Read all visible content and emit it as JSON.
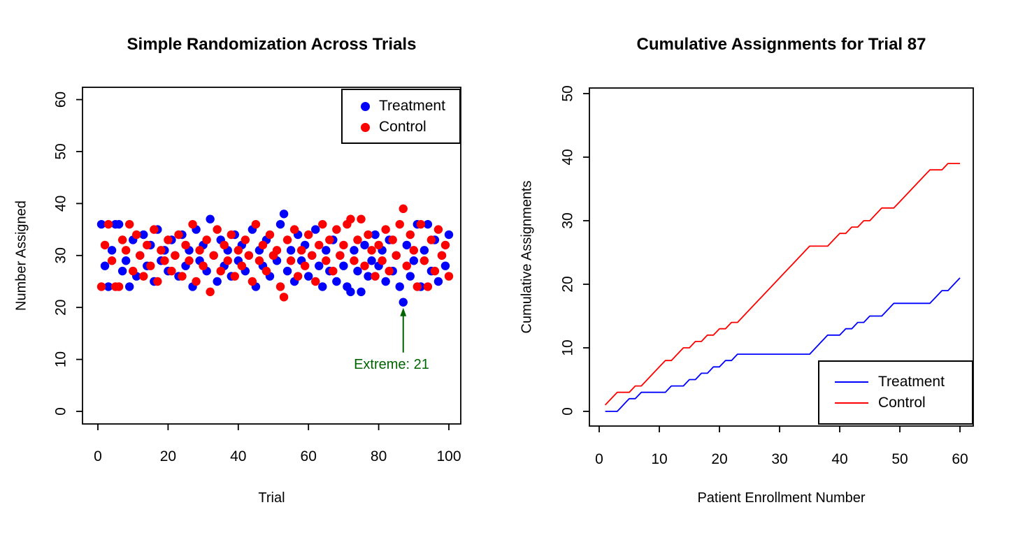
{
  "page": {
    "background": "#ffffff"
  },
  "colors": {
    "treatment": "#0000ff",
    "control": "#ff0000",
    "annotation_green": "#006400",
    "axis": "#000000"
  },
  "chart_data": [
    {
      "type": "scatter",
      "title": "Simple Randomization Across Trials",
      "xlabel": "Trial",
      "ylabel": "Number Assigned",
      "xlim": [
        0,
        100
      ],
      "ylim": [
        0,
        60
      ],
      "xticks": [
        0,
        20,
        40,
        60,
        80,
        100
      ],
      "yticks": [
        0,
        10,
        20,
        30,
        40,
        50,
        60
      ],
      "grid": false,
      "x_start": 1,
      "legend": {
        "position": "topright",
        "marker": "dot",
        "entries": [
          {
            "label": "Treatment",
            "color": "#0000ff"
          },
          {
            "label": "Control",
            "color": "#ff0000"
          }
        ]
      },
      "series": [
        {
          "name": "Treatment",
          "color": "#0000ff",
          "values": [
            36,
            28,
            24,
            31,
            36,
            36,
            27,
            29,
            24,
            33,
            26,
            30,
            34,
            28,
            32,
            25,
            35,
            29,
            31,
            27,
            33,
            30,
            26,
            34,
            28,
            31,
            24,
            35,
            29,
            32,
            27,
            37,
            30,
            25,
            33,
            28,
            31,
            26,
            34,
            29,
            32,
            27,
            30,
            35,
            24,
            31,
            28,
            33,
            26,
            30,
            29,
            36,
            38,
            27,
            31,
            25,
            34,
            29,
            32,
            26,
            30,
            35,
            28,
            24,
            31,
            27,
            33,
            25,
            30,
            28,
            24,
            23,
            31,
            27,
            23,
            32,
            26,
            29,
            34,
            28,
            31,
            25,
            33,
            27,
            30,
            24,
            21,
            32,
            26,
            29,
            36,
            24,
            31,
            36,
            27,
            33,
            25,
            30,
            28,
            34
          ]
        },
        {
          "name": "Control",
          "color": "#ff0000",
          "values": [
            24,
            32,
            36,
            29,
            24,
            24,
            33,
            31,
            36,
            27,
            34,
            30,
            26,
            32,
            28,
            35,
            25,
            31,
            29,
            33,
            27,
            30,
            34,
            26,
            32,
            29,
            36,
            25,
            31,
            28,
            33,
            23,
            30,
            35,
            27,
            32,
            29,
            34,
            26,
            31,
            28,
            33,
            30,
            25,
            36,
            29,
            32,
            27,
            34,
            30,
            31,
            24,
            22,
            33,
            29,
            35,
            26,
            31,
            28,
            34,
            30,
            25,
            32,
            36,
            29,
            33,
            27,
            35,
            30,
            32,
            36,
            37,
            29,
            33,
            37,
            28,
            34,
            31,
            26,
            32,
            29,
            35,
            27,
            33,
            30,
            36,
            39,
            28,
            34,
            31,
            24,
            36,
            29,
            24,
            33,
            27,
            35,
            30,
            32,
            26
          ]
        }
      ],
      "annotation": {
        "text": "Extreme: 21",
        "x": 87,
        "y": 21,
        "color": "#006400",
        "arrow": true
      }
    },
    {
      "type": "line",
      "title": "Cumulative Assignments for Trial 87",
      "xlabel": "Patient Enrollment Number",
      "ylabel": "Cumulative Assignments",
      "xlim": [
        0,
        60
      ],
      "ylim": [
        0,
        50
      ],
      "xticks": [
        0,
        10,
        20,
        30,
        40,
        50,
        60
      ],
      "yticks": [
        0,
        10,
        20,
        30,
        40,
        50
      ],
      "grid": false,
      "x_start": 1,
      "legend": {
        "position": "bottomright",
        "marker": "line",
        "entries": [
          {
            "label": "Treatment",
            "color": "#0000ff"
          },
          {
            "label": "Control",
            "color": "#ff0000"
          }
        ]
      },
      "series": [
        {
          "name": "Treatment",
          "color": "#0000ff",
          "values": [
            0,
            0,
            0,
            1,
            2,
            2,
            3,
            3,
            3,
            3,
            3,
            4,
            4,
            4,
            5,
            5,
            6,
            6,
            7,
            7,
            8,
            8,
            9,
            9,
            9,
            9,
            9,
            9,
            9,
            9,
            9,
            9,
            9,
            9,
            9,
            10,
            11,
            12,
            12,
            12,
            13,
            13,
            14,
            14,
            15,
            15,
            15,
            16,
            17,
            17,
            17,
            17,
            17,
            17,
            17,
            18,
            19,
            19,
            20,
            21
          ]
        },
        {
          "name": "Control",
          "color": "#ff0000",
          "values": [
            1,
            2,
            3,
            3,
            3,
            4,
            4,
            5,
            6,
            7,
            8,
            8,
            9,
            10,
            10,
            11,
            11,
            12,
            12,
            13,
            13,
            14,
            14,
            15,
            16,
            17,
            18,
            19,
            20,
            21,
            22,
            23,
            24,
            25,
            26,
            26,
            26,
            26,
            27,
            28,
            28,
            29,
            29,
            30,
            30,
            31,
            32,
            32,
            32,
            33,
            34,
            35,
            36,
            37,
            38,
            38,
            38,
            39,
            39,
            39
          ]
        }
      ]
    }
  ]
}
